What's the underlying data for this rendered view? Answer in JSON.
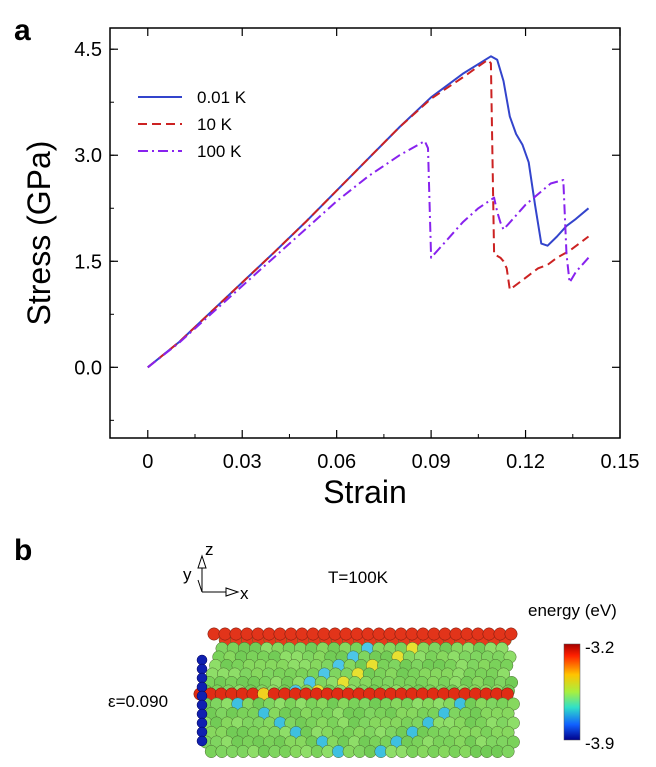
{
  "panel_a_label": "a",
  "panel_b_label": "b",
  "chart_data": {
    "type": "line",
    "title": "",
    "xlabel": "Strain",
    "ylabel": "Stress (GPa)",
    "xlim": [
      -0.012,
      0.15
    ],
    "ylim": [
      -1.0,
      4.8
    ],
    "x_ticks": [
      0,
      0.03,
      0.06,
      0.09,
      0.12,
      0.15
    ],
    "x_tick_labels": [
      "0",
      "0.03",
      "0.06",
      "0.09",
      "0.12",
      "0.15"
    ],
    "y_ticks": [
      0.0,
      1.5,
      3.0,
      4.5
    ],
    "y_tick_labels": [
      "0.0",
      "1.5",
      "3.0",
      "4.5"
    ],
    "grid": false,
    "legend_position": "top-left",
    "series": [
      {
        "name": "0.01 K",
        "color": "#3344cc",
        "style": "solid",
        "x": [
          0,
          0.01,
          0.02,
          0.03,
          0.04,
          0.05,
          0.06,
          0.07,
          0.08,
          0.09,
          0.1,
          0.109,
          0.111,
          0.113,
          0.115,
          0.117,
          0.119,
          0.121,
          0.123,
          0.125,
          0.127,
          0.13,
          0.133,
          0.136,
          0.14
        ],
        "y": [
          0,
          0.36,
          0.78,
          1.2,
          1.62,
          2.05,
          2.5,
          2.95,
          3.4,
          3.82,
          4.15,
          4.4,
          4.35,
          4.05,
          3.55,
          3.3,
          3.15,
          2.9,
          2.3,
          1.75,
          1.72,
          1.85,
          2.0,
          2.1,
          2.25
        ]
      },
      {
        "name": "10 K",
        "color": "#cc2222",
        "style": "dashed",
        "x": [
          0,
          0.01,
          0.02,
          0.03,
          0.04,
          0.05,
          0.06,
          0.07,
          0.08,
          0.09,
          0.1,
          0.108,
          0.109,
          0.11,
          0.112,
          0.113,
          0.114,
          0.115,
          0.118,
          0.121,
          0.124,
          0.127,
          0.13,
          0.134,
          0.137,
          0.14
        ],
        "y": [
          0,
          0.36,
          0.78,
          1.2,
          1.62,
          2.05,
          2.5,
          2.95,
          3.4,
          3.8,
          4.1,
          4.35,
          4.3,
          1.6,
          1.55,
          1.5,
          1.4,
          1.1,
          1.2,
          1.3,
          1.4,
          1.45,
          1.55,
          1.65,
          1.75,
          1.85
        ]
      },
      {
        "name": "100 K",
        "color": "#8822ee",
        "style": "dashdot",
        "x": [
          0,
          0.01,
          0.02,
          0.03,
          0.04,
          0.05,
          0.06,
          0.07,
          0.08,
          0.088,
          0.089,
          0.09,
          0.095,
          0.1,
          0.105,
          0.11,
          0.111,
          0.112,
          0.113,
          0.116,
          0.12,
          0.124,
          0.128,
          0.132,
          0.133,
          0.134,
          0.136,
          0.138,
          0.14
        ],
        "y": [
          0,
          0.35,
          0.75,
          1.15,
          1.55,
          1.95,
          2.35,
          2.7,
          3.0,
          3.2,
          3.1,
          1.55,
          1.8,
          2.05,
          2.25,
          2.4,
          2.2,
          2.05,
          1.95,
          2.1,
          2.3,
          2.45,
          2.6,
          2.65,
          1.6,
          1.2,
          1.35,
          1.45,
          1.55
        ]
      }
    ]
  },
  "panel_b": {
    "axis_z": "z",
    "axis_y": "y",
    "axis_x": "x",
    "temperature_label": "T=100K",
    "strain_label": "ε=0.090",
    "colorbar_title": "energy (eV)",
    "colorbar_max": "-3.2",
    "colorbar_min": "-3.9"
  }
}
